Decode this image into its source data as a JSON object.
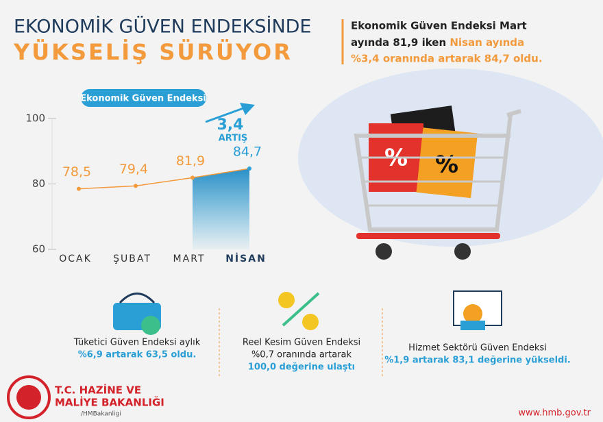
{
  "header": {
    "title_line1": "EKONOMİK GÜVEN ENDEKSİNDE",
    "title_line2": "YÜKSELİŞ SÜRÜYOR",
    "summary": [
      "Ekonomik Güven Endeksi Mart",
      "ayında 81,9 iken ",
      "Nisan ayında",
      "%3,4 oranında artarak 84,7 oldu."
    ]
  },
  "chart_data": {
    "type": "line",
    "title": "Ekonomik Güven Endeksi",
    "categories": [
      "OCAK",
      "ŞUBAT",
      "MART",
      "NİSAN"
    ],
    "values": [
      78.5,
      79.4,
      81.9,
      84.7
    ],
    "value_labels": [
      "78,5",
      "79,4",
      "81,9",
      "84,7"
    ],
    "color": "#f39a3c",
    "highlight_color": "#2a9fd6",
    "ylim": [
      60,
      100
    ],
    "yticks": [
      60,
      80,
      100
    ],
    "annotations": [
      "3,4",
      "ARTIŞ"
    ]
  },
  "stats": [
    {
      "lines": [
        "Tüketici Güven Endeksi aylık"
      ],
      "highlight": [
        "%6,9 artarak 63,5 oldu."
      ]
    },
    {
      "lines": [
        "Reel Kesim Güven Endeksi",
        "%0,7 oranında artarak"
      ],
      "highlight": [
        "100,0 değerine ulaştı"
      ]
    },
    {
      "lines": [
        "Hizmet Sektörü Güven Endeksi"
      ],
      "highlight": [
        "%1,9 artarak 83,1 değerine yükseldi."
      ]
    }
  ],
  "footer": {
    "org_line1": "T.C. HAZİNE VE",
    "org_line2": "MALİYE BAKANLIĞI",
    "social": "/HMBakanligi",
    "url": "www.hmb.gov.tr"
  }
}
